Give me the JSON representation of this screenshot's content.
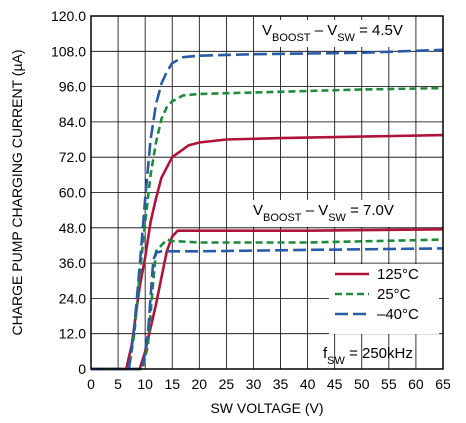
{
  "chart_data": {
    "type": "line",
    "xlabel": "SW VOLTAGE (V)",
    "ylabel": "CHARGE PUMP CHARGING CURRENT (µA)",
    "xlim": [
      0,
      65
    ],
    "ylim": [
      0,
      120
    ],
    "x_ticks": [
      "0",
      "5",
      "10",
      "15",
      "20",
      "25",
      "30",
      "35",
      "40",
      "45",
      "50",
      "55",
      "60",
      "65"
    ],
    "y_ticks": [
      "0",
      "12.0",
      "24.0",
      "36.0",
      "48.0",
      "60.0",
      "72.0",
      "84.0",
      "96.0",
      "108.0",
      "120.0"
    ],
    "grid": true,
    "legend_position": "bottom-right",
    "legend": [
      {
        "label": "125°C",
        "color": "#b0133a",
        "dash": "solid"
      },
      {
        "label": "25°C",
        "color": "#1f8a3c",
        "dash": "dashed"
      },
      {
        "label": "–40°C",
        "color": "#2a5ba6",
        "dash": "longdash"
      }
    ],
    "annotations": {
      "upper": {
        "main": "V",
        "sub1": "BOOST",
        "mid": " – V",
        "sub2": "SW",
        "tail": " = 4.5V"
      },
      "lower": {
        "main": "V",
        "sub1": "BOOST",
        "mid": " – V",
        "sub2": "SW",
        "tail": " = 7.0V"
      },
      "freq": {
        "main": "f",
        "sub": "SW",
        "tail": " = 250kHz"
      }
    },
    "series": [
      {
        "name": "125°C",
        "group": "4.5V",
        "color": "#b0133a",
        "dash": "solid",
        "points": [
          [
            0,
            0
          ],
          [
            6.5,
            0
          ],
          [
            7.5,
            8
          ],
          [
            9,
            28
          ],
          [
            10,
            38
          ],
          [
            11,
            50
          ],
          [
            12,
            58
          ],
          [
            13,
            65
          ],
          [
            15,
            72
          ],
          [
            18,
            76
          ],
          [
            20,
            77
          ],
          [
            25,
            78
          ],
          [
            35,
            78.5
          ],
          [
            50,
            79
          ],
          [
            65,
            79.5
          ]
        ]
      },
      {
        "name": "25°C",
        "group": "4.5V",
        "color": "#1f8a3c",
        "dash": "dashed",
        "points": [
          [
            0,
            0
          ],
          [
            7,
            0
          ],
          [
            8,
            12
          ],
          [
            9,
            32
          ],
          [
            10,
            50
          ],
          [
            11,
            66
          ],
          [
            12,
            77
          ],
          [
            13,
            85
          ],
          [
            14,
            89
          ],
          [
            15,
            91
          ],
          [
            17,
            93
          ],
          [
            20,
            93.5
          ],
          [
            30,
            94
          ],
          [
            50,
            95
          ],
          [
            65,
            95.5
          ]
        ]
      },
      {
        "name": "–40°C",
        "group": "4.5V",
        "color": "#2a5ba6",
        "dash": "longdash",
        "points": [
          [
            0,
            0
          ],
          [
            7,
            0
          ],
          [
            8,
            14
          ],
          [
            9,
            35
          ],
          [
            10,
            58
          ],
          [
            11,
            78
          ],
          [
            12,
            90
          ],
          [
            13,
            97
          ],
          [
            14,
            101
          ],
          [
            15,
            104
          ],
          [
            17,
            106
          ],
          [
            20,
            106.5
          ],
          [
            30,
            107
          ],
          [
            50,
            107.5
          ],
          [
            65,
            108.5
          ]
        ]
      },
      {
        "name": "125°C",
        "group": "7.0V",
        "color": "#b0133a",
        "dash": "solid",
        "points": [
          [
            0,
            0
          ],
          [
            9,
            0
          ],
          [
            10,
            6
          ],
          [
            12,
            22
          ],
          [
            13,
            31
          ],
          [
            14,
            40
          ],
          [
            15,
            45
          ],
          [
            16,
            47
          ],
          [
            20,
            47
          ],
          [
            40,
            47
          ],
          [
            65,
            47.5
          ]
        ]
      },
      {
        "name": "25°C",
        "group": "7.0V",
        "color": "#1f8a3c",
        "dash": "dashed",
        "points": [
          [
            0,
            0
          ],
          [
            9.5,
            0
          ],
          [
            10.5,
            8
          ],
          [
            11.5,
            30
          ],
          [
            12,
            40
          ],
          [
            13,
            42
          ],
          [
            14,
            44
          ],
          [
            15,
            43.5
          ],
          [
            20,
            43
          ],
          [
            40,
            43
          ],
          [
            65,
            44
          ]
        ]
      },
      {
        "name": "–40°C",
        "group": "7.0V",
        "color": "#2a5ba6",
        "dash": "longdash",
        "points": [
          [
            0,
            0
          ],
          [
            9.5,
            0
          ],
          [
            10.5,
            12
          ],
          [
            11.5,
            37
          ],
          [
            12,
            39.5
          ],
          [
            13,
            40
          ],
          [
            15,
            40
          ],
          [
            20,
            40
          ],
          [
            40,
            40.5
          ],
          [
            65,
            41
          ]
        ]
      }
    ]
  }
}
